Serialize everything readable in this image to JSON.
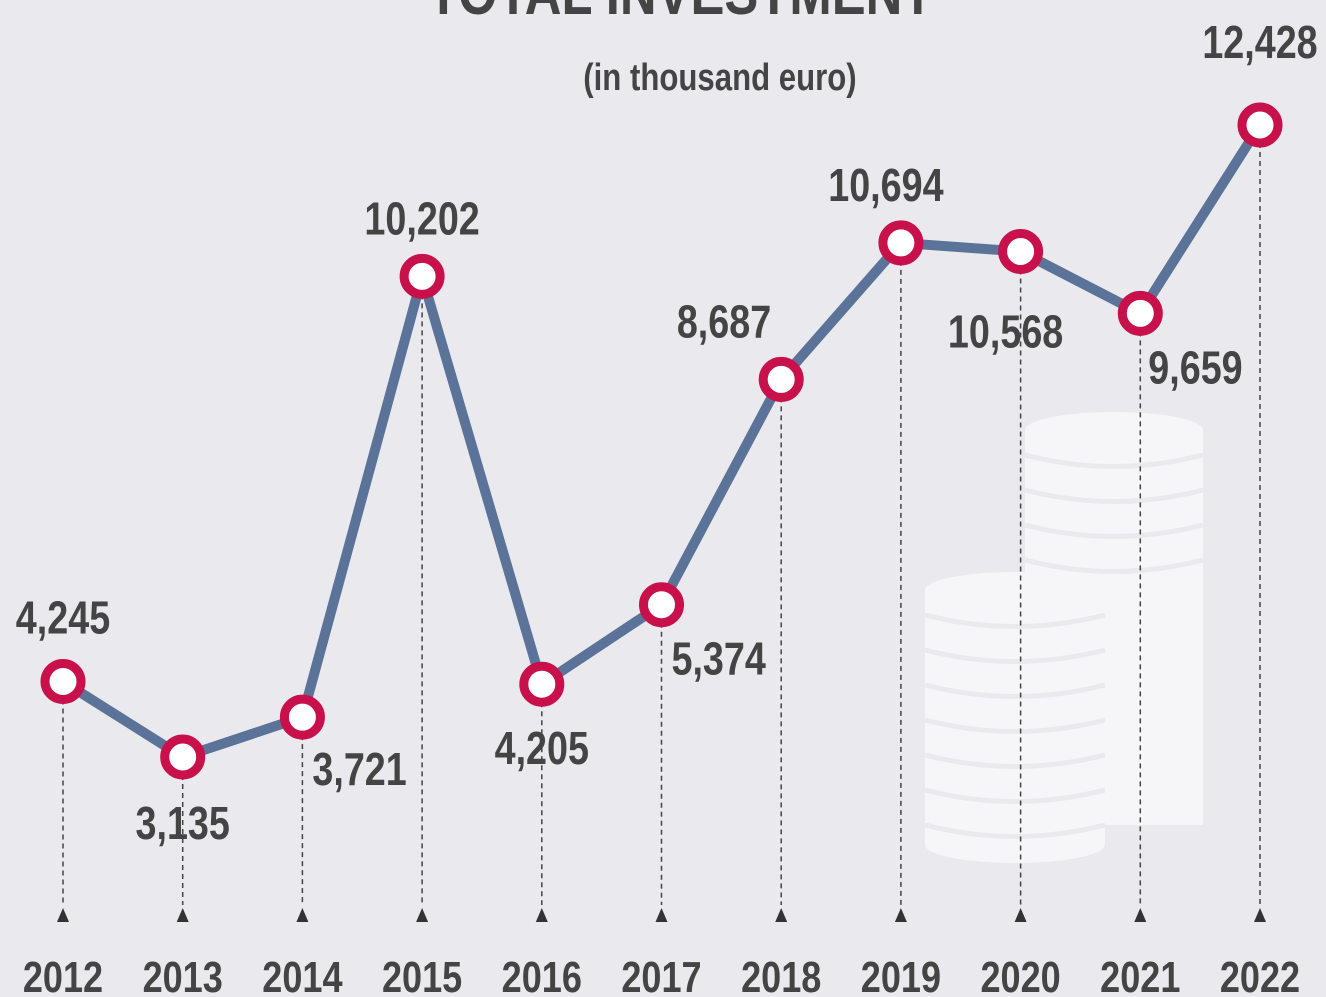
{
  "chart_data": {
    "type": "line",
    "title": "TOTAL INVESTMENT",
    "subtitle": "(in thousand euro)",
    "categories": [
      "2012",
      "2013",
      "2014",
      "2015",
      "2016",
      "2017",
      "2018",
      "2019",
      "2020",
      "2021",
      "2022"
    ],
    "values": [
      4245,
      3135,
      3721,
      10202,
      4205,
      5374,
      8687,
      10694,
      10568,
      9659,
      12428
    ],
    "value_labels": [
      "4,245",
      "3,135",
      "3,721",
      "10,202",
      "4,205",
      "5,374",
      "8,687",
      "10,694",
      "10,568",
      "9,659",
      "12,428"
    ],
    "line_color": "#5b7299",
    "marker_color": "#c8104a"
  }
}
